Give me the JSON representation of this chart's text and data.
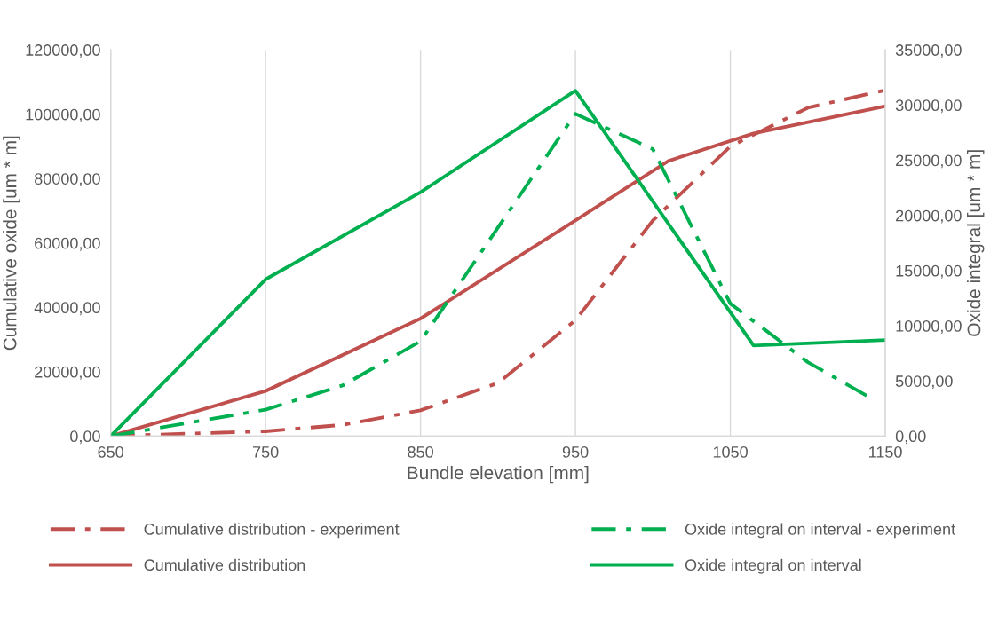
{
  "chart_data": {
    "type": "line",
    "xlabel": "Bundle elevation [mm]",
    "ylabel": "Cumulative oxide [um * m]",
    "y2label": "Oxide integral [um * m]",
    "xlim": [
      650,
      1150
    ],
    "xticks": [
      650,
      750,
      850,
      950,
      1050,
      1150
    ],
    "ylim": [
      0,
      120000
    ],
    "yticks": [
      {
        "value": 0,
        "label": "0,00"
      },
      {
        "value": 20000,
        "label": "20000,00"
      },
      {
        "value": 40000,
        "label": "40000,00"
      },
      {
        "value": 60000,
        "label": "60000,00"
      },
      {
        "value": 80000,
        "label": "80000,00"
      },
      {
        "value": 100000,
        "label": "100000,00"
      },
      {
        "value": 120000,
        "label": "120000,00"
      }
    ],
    "y2lim": [
      0,
      35000
    ],
    "y2ticks": [
      {
        "value": 0,
        "label": "0,00"
      },
      {
        "value": 5000,
        "label": "5000,00"
      },
      {
        "value": 10000,
        "label": "10000,00"
      },
      {
        "value": 15000,
        "label": "15000,00"
      },
      {
        "value": 20000,
        "label": "20000,00"
      },
      {
        "value": 25000,
        "label": "25000,00"
      },
      {
        "value": 30000,
        "label": "30000,00"
      },
      {
        "value": 35000,
        "label": "35000,00"
      }
    ],
    "grid": "x",
    "legend": "bottom",
    "marker": "none",
    "series": [
      {
        "name": "Cumulative distribution - experiment",
        "color": "#c0504d",
        "line_style": "dashdot",
        "x": [
          650,
          750,
          800,
          850,
          900,
          950,
          1000,
          1050,
          1100,
          1150
        ],
        "values": [
          0,
          1500,
          3500,
          8000,
          16500,
          36000,
          67000,
          90000,
          102000,
          107500
        ]
      },
      {
        "name": "Cumulative distribution",
        "color": "#c0504d",
        "line_style": "solid",
        "x": [
          650,
          750,
          850,
          950,
          1010,
          1065,
          1150
        ],
        "values": [
          0,
          14000,
          36500,
          67000,
          85500,
          94000,
          102500
        ]
      },
      {
        "name": "Oxide integral on interval - experiment",
        "color": "#00b050",
        "line_style": "dashdot",
        "axis": "y2",
        "x": [
          650,
          750,
          800,
          850,
          950,
          1000,
          1050,
          1100,
          1140
        ],
        "values": [
          0,
          2400,
          4600,
          8600,
          29200,
          26000,
          12000,
          6700,
          3500
        ]
      },
      {
        "name": "Oxide integral on interval",
        "color": "#00b050",
        "line_style": "solid",
        "axis": "y2",
        "x": [
          650,
          750,
          850,
          950,
          1065,
          1150
        ],
        "values": [
          0,
          14200,
          22100,
          31300,
          8200,
          8700
        ]
      }
    ]
  }
}
